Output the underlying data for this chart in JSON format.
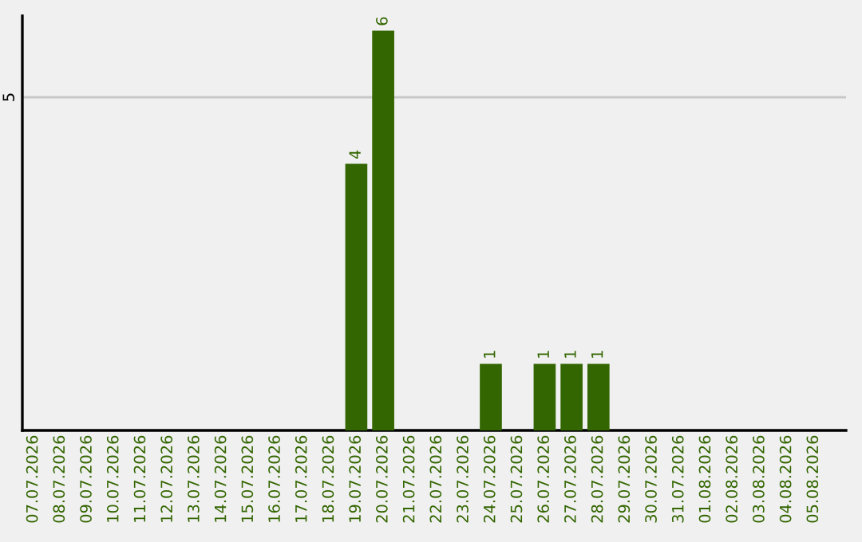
{
  "chart_data": {
    "type": "bar",
    "categories": [
      "07.07.2026",
      "08.07.2026",
      "09.07.2026",
      "10.07.2026",
      "11.07.2026",
      "12.07.2026",
      "13.07.2026",
      "14.07.2026",
      "15.07.2026",
      "16.07.2026",
      "17.07.2026",
      "18.07.2026",
      "19.07.2026",
      "20.07.2026",
      "21.07.2026",
      "22.07.2026",
      "23.07.2026",
      "24.07.2026",
      "25.07.2026",
      "26.07.2026",
      "27.07.2026",
      "28.07.2026",
      "29.07.2026",
      "30.07.2026",
      "31.07.2026",
      "01.08.2026",
      "02.08.2026",
      "03.08.2026",
      "04.08.2026",
      "05.08.2026"
    ],
    "values": [
      null,
      null,
      null,
      null,
      null,
      null,
      null,
      null,
      null,
      null,
      null,
      null,
      4,
      6,
      null,
      null,
      null,
      1,
      null,
      1,
      1,
      1,
      null,
      null,
      null,
      null,
      null,
      null,
      null,
      null
    ],
    "data_labels": true,
    "color": "#336600",
    "ylim": [
      0,
      6.22
    ],
    "legend": false,
    "ref_lines": [
      {
        "axis": "y",
        "value": 5,
        "label": "5",
        "color": "#c8c8c8"
      }
    ]
  }
}
